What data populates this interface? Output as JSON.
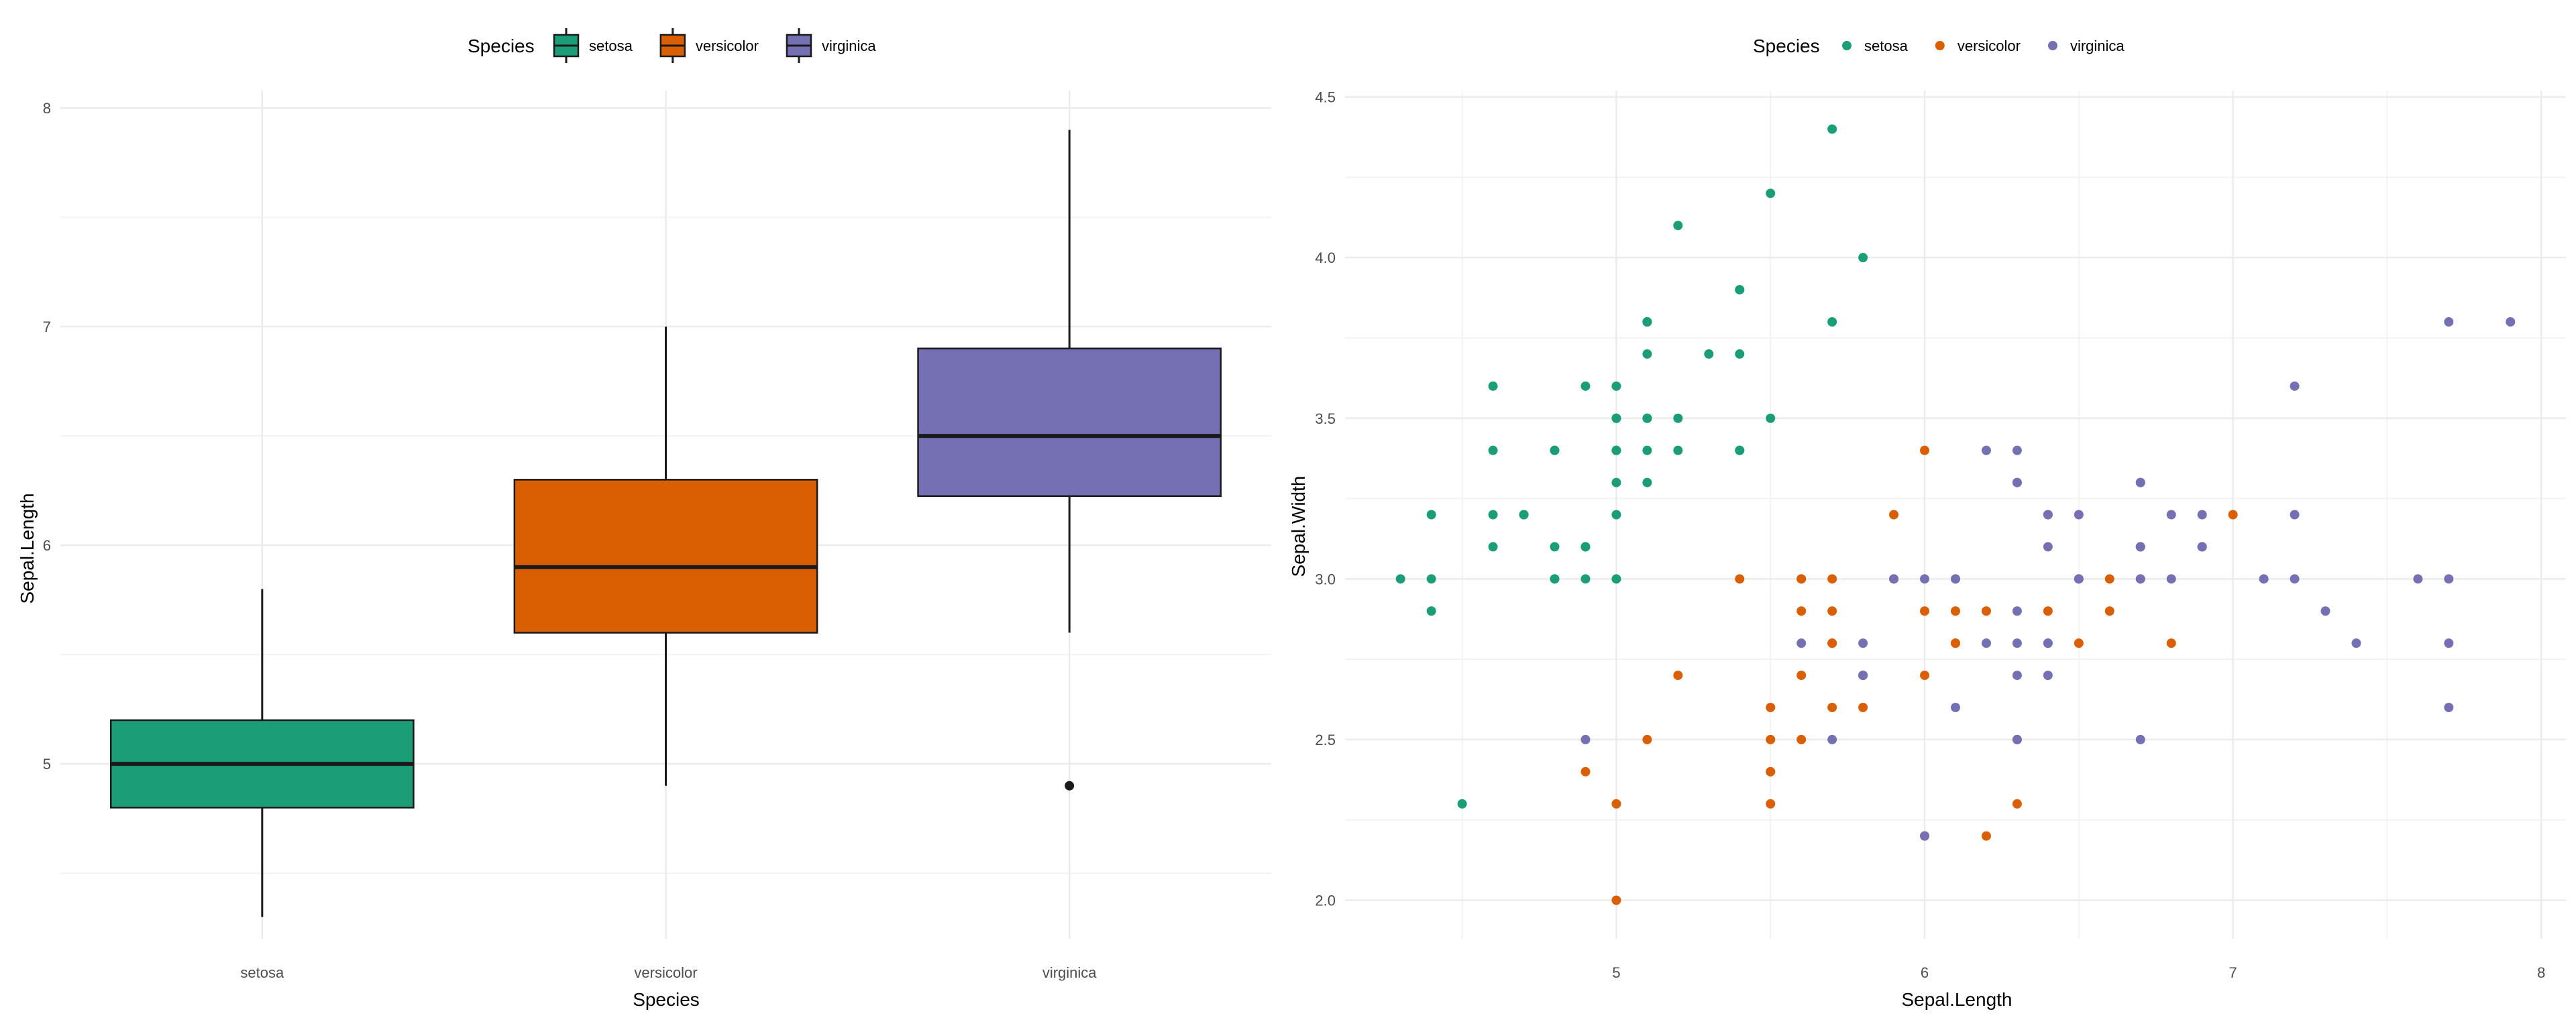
{
  "chart_data": [
    {
      "type": "box",
      "xlabel": "Species",
      "ylabel": "Sepal.Length",
      "legend": {
        "title": "Species",
        "position": "top"
      },
      "grid": true,
      "categories": [
        "setosa",
        "versicolor",
        "virginica"
      ],
      "yticks": [
        5,
        6,
        7,
        8
      ],
      "ylim": [
        4.2,
        8.08
      ],
      "boxes": [
        {
          "name": "setosa",
          "color": "#1b9e77",
          "whisker_low": 4.3,
          "q1": 4.8,
          "median": 5.0,
          "q3": 5.2,
          "whisker_high": 5.8,
          "outliers": []
        },
        {
          "name": "versicolor",
          "color": "#d95f02",
          "whisker_low": 4.9,
          "q1": 5.6,
          "median": 5.9,
          "q3": 6.3,
          "whisker_high": 7.0,
          "outliers": []
        },
        {
          "name": "virginica",
          "color": "#7570b3",
          "whisker_low": 5.6,
          "q1": 6.225,
          "median": 6.5,
          "q3": 6.9,
          "whisker_high": 7.9,
          "outliers": [
            4.9
          ]
        }
      ]
    },
    {
      "type": "scatter",
      "xlabel": "Sepal.Length",
      "ylabel": "Sepal.Width",
      "legend": {
        "title": "Species",
        "position": "top"
      },
      "grid": true,
      "xticks": [
        5,
        6,
        7,
        8
      ],
      "yticks": [
        "2.0",
        "2.5",
        "3.0",
        "3.5",
        "4.0",
        "4.5"
      ],
      "xlim": [
        4.12,
        8.08
      ],
      "ylim": [
        1.88,
        4.52
      ],
      "series": [
        {
          "name": "setosa",
          "color": "#1b9e77",
          "x": [
            5.1,
            4.9,
            4.7,
            4.6,
            5.0,
            5.4,
            4.6,
            5.0,
            4.4,
            4.9,
            5.4,
            4.8,
            4.8,
            4.3,
            5.8,
            5.7,
            5.4,
            5.1,
            5.7,
            5.1,
            5.4,
            5.1,
            4.6,
            5.1,
            4.8,
            5.0,
            5.0,
            5.2,
            5.2,
            4.7,
            4.8,
            5.4,
            5.2,
            5.5,
            4.9,
            5.0,
            5.5,
            4.9,
            4.4,
            5.1,
            5.0,
            4.5,
            4.4,
            5.0,
            5.1,
            4.8,
            5.1,
            4.6,
            5.3,
            5.0
          ],
          "y": [
            3.5,
            3.0,
            3.2,
            3.1,
            3.6,
            3.9,
            3.4,
            3.4,
            2.9,
            3.1,
            3.7,
            3.4,
            3.0,
            3.0,
            4.0,
            4.4,
            3.9,
            3.5,
            3.8,
            3.8,
            3.4,
            3.7,
            3.6,
            3.3,
            3.4,
            3.0,
            3.4,
            3.5,
            3.4,
            3.2,
            3.1,
            3.4,
            4.1,
            4.2,
            3.1,
            3.2,
            3.5,
            3.6,
            3.0,
            3.4,
            3.5,
            2.3,
            3.2,
            3.5,
            3.8,
            3.0,
            3.8,
            3.2,
            3.7,
            3.3
          ]
        },
        {
          "name": "versicolor",
          "color": "#d95f02",
          "x": [
            7.0,
            6.4,
            6.9,
            5.5,
            6.5,
            5.7,
            6.3,
            4.9,
            6.6,
            5.2,
            5.0,
            5.9,
            6.0,
            6.1,
            5.6,
            6.7,
            5.6,
            5.8,
            6.2,
            5.6,
            5.9,
            6.1,
            6.3,
            6.1,
            6.4,
            6.6,
            6.8,
            6.7,
            6.0,
            5.7,
            5.5,
            5.5,
            5.8,
            6.0,
            5.4,
            6.0,
            6.7,
            6.3,
            5.6,
            5.5,
            5.5,
            6.1,
            5.8,
            5.0,
            5.6,
            5.7,
            5.7,
            6.2,
            5.1,
            5.7
          ],
          "y": [
            3.2,
            3.2,
            3.1,
            2.3,
            2.8,
            2.8,
            3.3,
            2.4,
            2.9,
            2.7,
            2.0,
            3.0,
            2.2,
            2.9,
            2.9,
            3.1,
            3.0,
            2.7,
            2.2,
            2.5,
            3.2,
            2.8,
            2.5,
            2.8,
            2.9,
            3.0,
            2.8,
            3.0,
            2.9,
            2.6,
            2.4,
            2.4,
            2.7,
            2.7,
            3.0,
            3.4,
            3.1,
            2.3,
            3.0,
            2.5,
            2.6,
            3.0,
            2.6,
            2.3,
            2.7,
            3.0,
            2.9,
            2.9,
            2.5,
            2.8
          ]
        },
        {
          "name": "virginica",
          "color": "#7570b3",
          "x": [
            6.3,
            5.8,
            7.1,
            6.3,
            6.5,
            7.6,
            4.9,
            7.3,
            6.7,
            7.2,
            6.5,
            6.4,
            6.8,
            5.7,
            5.8,
            6.4,
            6.5,
            7.7,
            7.7,
            6.0,
            6.9,
            5.6,
            7.7,
            6.3,
            6.7,
            7.2,
            6.2,
            6.1,
            6.4,
            7.2,
            7.4,
            7.9,
            6.4,
            6.3,
            6.1,
            7.7,
            6.3,
            6.4,
            6.0,
            6.9,
            6.7,
            6.9,
            5.8,
            6.8,
            6.7,
            6.7,
            6.3,
            6.5,
            6.2,
            5.9
          ],
          "y": [
            3.3,
            2.7,
            3.0,
            2.9,
            3.0,
            3.0,
            2.5,
            2.9,
            2.5,
            3.6,
            3.2,
            2.7,
            3.0,
            2.5,
            2.8,
            3.2,
            3.0,
            3.8,
            2.6,
            2.2,
            3.2,
            2.8,
            2.8,
            2.7,
            3.3,
            3.2,
            2.8,
            3.0,
            2.8,
            3.0,
            2.8,
            3.8,
            2.8,
            2.8,
            2.6,
            3.0,
            3.4,
            3.1,
            3.0,
            3.1,
            3.1,
            3.1,
            2.7,
            3.2,
            3.3,
            3.0,
            2.5,
            3.0,
            3.4,
            3.0
          ]
        }
      ]
    }
  ]
}
